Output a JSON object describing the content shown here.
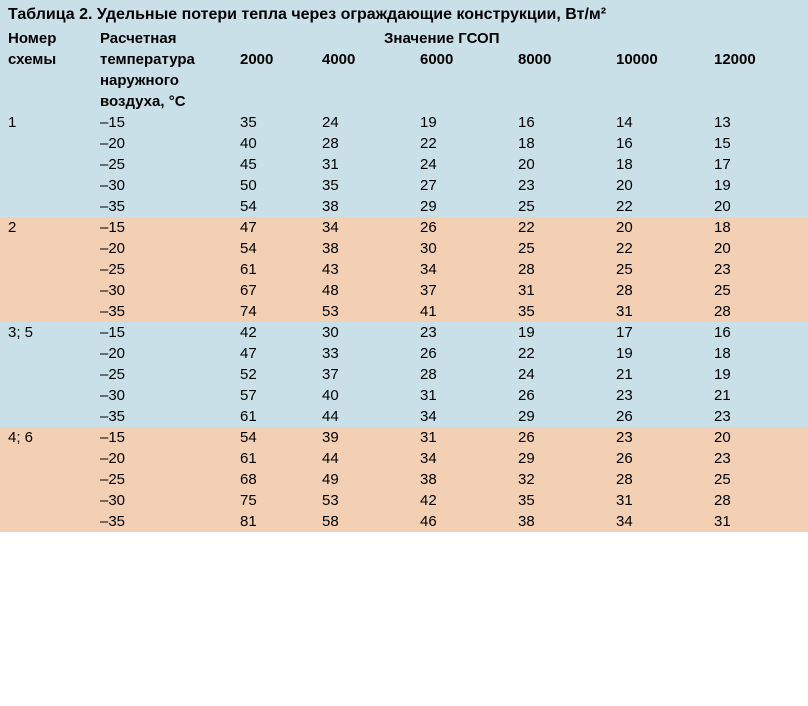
{
  "title": "Таблица 2. Удельные потери тепла через ограждающие конструкции, Вт/м²",
  "column_widths": [
    "92px",
    "140px",
    "82px",
    "98px",
    "98px",
    "98px",
    "98px",
    "102px"
  ],
  "background_color": "#ffffff",
  "header": {
    "bg": "#c9e0e8",
    "col1": "Номер схемы",
    "col2_l1": "Расчетная",
    "col2_l2": "температура",
    "col2_l3": "наружного",
    "col2_l4": "воздуха, °С",
    "gsop_label": "Значение ГСОП",
    "gsop": [
      "2000",
      "4000",
      "6000",
      "8000",
      "10000",
      "12000"
    ],
    "font_weight": "700"
  },
  "groups": [
    {
      "scheme": "1",
      "bg": "#c9e0e8",
      "rows": [
        {
          "temp": "–15",
          "vals": [
            "35",
            "24",
            "19",
            "16",
            "14",
            "13"
          ]
        },
        {
          "temp": "–20",
          "vals": [
            "40",
            "28",
            "22",
            "18",
            "16",
            "15"
          ]
        },
        {
          "temp": "–25",
          "vals": [
            "45",
            "31",
            "24",
            "20",
            "18",
            "17"
          ]
        },
        {
          "temp": "–30",
          "vals": [
            "50",
            "35",
            "27",
            "23",
            "20",
            "19"
          ]
        },
        {
          "temp": "–35",
          "vals": [
            "54",
            "38",
            "29",
            "25",
            "22",
            "20"
          ]
        }
      ]
    },
    {
      "scheme": "2",
      "bg": "#f3cfb4",
      "rows": [
        {
          "temp": "–15",
          "vals": [
            "47",
            "34",
            "26",
            "22",
            "20",
            "18"
          ]
        },
        {
          "temp": "–20",
          "vals": [
            "54",
            "38",
            "30",
            "25",
            "22",
            "20"
          ]
        },
        {
          "temp": "–25",
          "vals": [
            "61",
            "43",
            "34",
            "28",
            "25",
            "23"
          ]
        },
        {
          "temp": "–30",
          "vals": [
            "67",
            "48",
            "37",
            "31",
            "28",
            "25"
          ]
        },
        {
          "temp": "–35",
          "vals": [
            "74",
            "53",
            "41",
            "35",
            "31",
            "28"
          ]
        }
      ]
    },
    {
      "scheme": "3; 5",
      "bg": "#c9e0e8",
      "rows": [
        {
          "temp": "–15",
          "vals": [
            "42",
            "30",
            "23",
            "19",
            "17",
            "16"
          ]
        },
        {
          "temp": "–20",
          "vals": [
            "47",
            "33",
            "26",
            "22",
            "19",
            "18"
          ]
        },
        {
          "temp": "–25",
          "vals": [
            "52",
            "37",
            "28",
            "24",
            "21",
            "19"
          ]
        },
        {
          "temp": "–30",
          "vals": [
            "57",
            "40",
            "31",
            "26",
            "23",
            "21"
          ]
        },
        {
          "temp": "–35",
          "vals": [
            "61",
            "44",
            "34",
            "29",
            "26",
            "23"
          ]
        }
      ]
    },
    {
      "scheme": "4; 6",
      "bg": "#f3cfb4",
      "rows": [
        {
          "temp": "–15",
          "vals": [
            "54",
            "39",
            "31",
            "26",
            "23",
            "20"
          ]
        },
        {
          "temp": "–20",
          "vals": [
            "61",
            "44",
            "34",
            "29",
            "26",
            "23"
          ]
        },
        {
          "temp": "–25",
          "vals": [
            "68",
            "49",
            "38",
            "32",
            "28",
            "25"
          ]
        },
        {
          "temp": "–30",
          "vals": [
            "75",
            "53",
            "42",
            "35",
            "31",
            "28"
          ]
        },
        {
          "temp": "–35",
          "vals": [
            "81",
            "58",
            "46",
            "38",
            "34",
            "31"
          ]
        }
      ]
    }
  ]
}
